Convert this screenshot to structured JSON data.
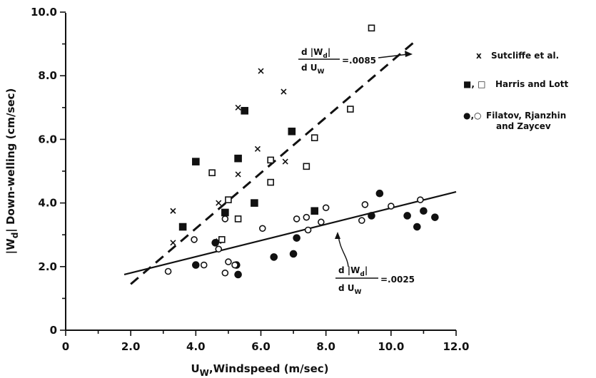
{
  "chart_data": {
    "type": "scatter",
    "xlabel": "U",
    "xlabel_sub": "W",
    "xlabel_rest": ",Windspeed (m/sec)",
    "ylabel": "|W",
    "ylabel_sub": "d",
    "ylabel_rest": "| Down-welling (cm/sec)",
    "xlim": [
      0,
      12
    ],
    "ylim": [
      0,
      10
    ],
    "x_ticks": [
      "0",
      "2.0",
      "4.0",
      "6.0",
      "8.0",
      "10.0",
      "12.0"
    ],
    "y_ticks": [
      "0",
      "2.0",
      "4.0",
      "6.0",
      "8.0",
      "10.0"
    ],
    "x_tick_values": [
      0,
      2,
      4,
      6,
      8,
      10,
      12
    ],
    "y_tick_values": [
      0,
      2,
      4,
      6,
      8,
      10
    ],
    "grid": false,
    "legend_position": "right",
    "series": [
      {
        "name": "Sutcliffe et al.",
        "legend_symbol": "x",
        "marker": "x",
        "points": [
          [
            3.3,
            3.75
          ],
          [
            3.3,
            2.75
          ],
          [
            4.7,
            4.0
          ],
          [
            4.7,
            2.8
          ],
          [
            5.3,
            4.9
          ],
          [
            5.3,
            7.0
          ],
          [
            5.9,
            5.7
          ],
          [
            6.0,
            8.15
          ],
          [
            6.7,
            7.5
          ],
          [
            6.75,
            5.3
          ]
        ]
      },
      {
        "name": "Harris and Lott",
        "legend_symbol": "■, □",
        "marker": "square",
        "filled_points": [
          [
            3.6,
            3.25
          ],
          [
            4.0,
            5.3
          ],
          [
            4.9,
            3.7
          ],
          [
            5.3,
            5.4
          ],
          [
            5.5,
            6.9
          ],
          [
            5.8,
            4.0
          ],
          [
            6.95,
            6.25
          ],
          [
            7.65,
            3.75
          ]
        ],
        "open_points": [
          [
            4.5,
            4.95
          ],
          [
            4.8,
            2.85
          ],
          [
            5.0,
            4.1
          ],
          [
            5.3,
            3.5
          ],
          [
            6.3,
            5.35
          ],
          [
            6.3,
            4.65
          ],
          [
            7.4,
            5.15
          ],
          [
            7.65,
            6.05
          ],
          [
            8.75,
            6.95
          ],
          [
            9.4,
            9.5
          ]
        ]
      },
      {
        "name": "Filatov, Rjanzhin and Zaycev",
        "legend_symbol": "●,○",
        "marker": "circle",
        "filled_points": [
          [
            4.0,
            2.05
          ],
          [
            4.6,
            2.75
          ],
          [
            5.25,
            2.05
          ],
          [
            5.3,
            1.75
          ],
          [
            6.4,
            2.3
          ],
          [
            7.0,
            2.4
          ],
          [
            7.1,
            2.9
          ],
          [
            9.4,
            3.6
          ],
          [
            9.65,
            4.3
          ],
          [
            10.5,
            3.6
          ],
          [
            10.8,
            3.25
          ],
          [
            11.0,
            3.75
          ],
          [
            11.35,
            3.55
          ]
        ],
        "open_points": [
          [
            3.15,
            1.85
          ],
          [
            3.95,
            2.85
          ],
          [
            4.25,
            2.05
          ],
          [
            4.7,
            2.55
          ],
          [
            4.9,
            3.5
          ],
          [
            4.9,
            1.8
          ],
          [
            5.0,
            2.15
          ],
          [
            5.2,
            2.05
          ],
          [
            6.05,
            3.2
          ],
          [
            7.1,
            3.5
          ],
          [
            7.4,
            3.55
          ],
          [
            7.45,
            3.15
          ],
          [
            7.85,
            3.4
          ],
          [
            8.0,
            3.85
          ],
          [
            9.1,
            3.45
          ],
          [
            9.2,
            3.95
          ],
          [
            10.0,
            3.9
          ],
          [
            10.9,
            4.1
          ]
        ]
      }
    ],
    "fit_lines": [
      {
        "style": "dashed",
        "from": [
          2.0,
          1.45
        ],
        "to": [
          10.7,
          9.05
        ]
      },
      {
        "style": "solid",
        "from": [
          1.8,
          1.75
        ],
        "to": [
          12.0,
          4.35
        ]
      }
    ],
    "annotations": [
      {
        "numerator": "d |W",
        "numerator_sub": "d",
        "numerator_end": "|",
        "denominator": "d U",
        "denominator_sub": "W",
        "value": "=.0085"
      },
      {
        "numerator": "d |W",
        "numerator_sub": "d",
        "numerator_end": "|",
        "denominator": "d U",
        "denominator_sub": "W",
        "value": "=.0025"
      }
    ]
  }
}
